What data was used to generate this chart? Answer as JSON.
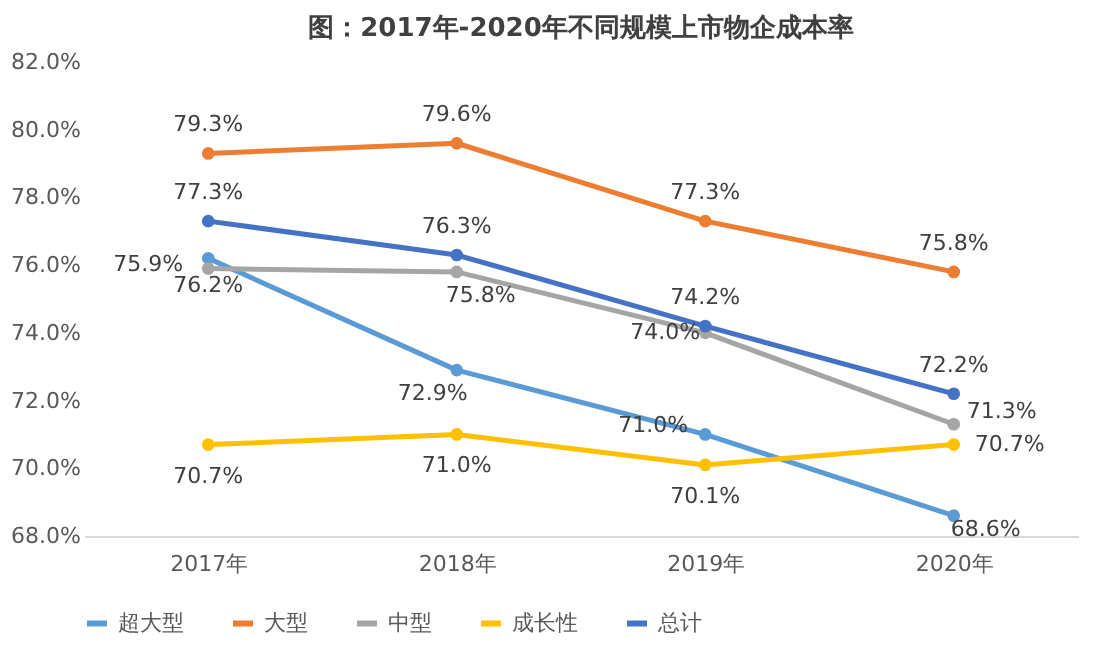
{
  "chart_data": {
    "type": "line",
    "title": "图：2017年-2020年不同规模上市物企成本率",
    "categories": [
      "2017年",
      "2018年",
      "2019年",
      "2020年"
    ],
    "series": [
      {
        "name": "超大型",
        "color": "#5b9bd5",
        "values": [
          76.2,
          72.9,
          71.0,
          68.6
        ],
        "value_labels": [
          "76.2%",
          "72.9%",
          "71.0%",
          "68.6%"
        ]
      },
      {
        "name": "大型",
        "color": "#ed7d31",
        "values": [
          79.3,
          79.6,
          77.3,
          75.8
        ],
        "value_labels": [
          "79.3%",
          "79.6%",
          "77.3%",
          "75.8%"
        ]
      },
      {
        "name": "中型",
        "color": "#a5a5a5",
        "values": [
          75.9,
          75.8,
          74.0,
          71.3
        ],
        "value_labels": [
          "75.9%",
          "75.8%",
          "74.0%",
          "71.3%"
        ]
      },
      {
        "name": "成长性",
        "color": "#ffc000",
        "values": [
          70.7,
          71.0,
          70.1,
          70.7
        ],
        "value_labels": [
          "70.7%",
          "71.0%",
          "70.1%",
          "70.7%"
        ]
      },
      {
        "name": "总计",
        "color": "#4472c4",
        "values": [
          77.3,
          76.3,
          74.2,
          72.2
        ],
        "value_labels": [
          "77.3%",
          "76.3%",
          "74.2%",
          "72.2%"
        ]
      }
    ],
    "ylim": [
      68,
      82
    ],
    "yticks": [
      {
        "value": 68,
        "label": "68.0%"
      },
      {
        "value": 70,
        "label": "70.0%"
      },
      {
        "value": 72,
        "label": "72.0%"
      },
      {
        "value": 74,
        "label": "74.0%"
      },
      {
        "value": 76,
        "label": "76.0%"
      },
      {
        "value": 78,
        "label": "78.0%"
      },
      {
        "value": 80,
        "label": "80.0%"
      },
      {
        "value": 82,
        "label": "82.0%"
      }
    ],
    "grid": false,
    "legend": "bottom",
    "marker": "circle",
    "line_style": "solid"
  }
}
